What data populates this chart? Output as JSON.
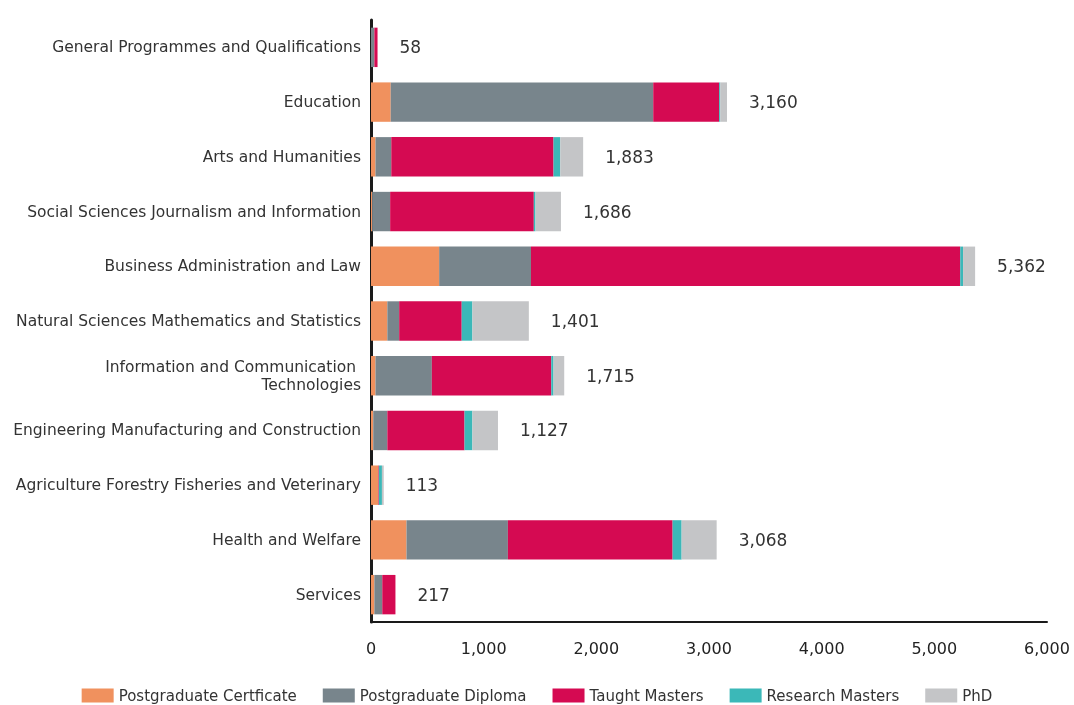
{
  "chart_data": {
    "type": "bar",
    "orientation": "horizontal",
    "stacked": true,
    "categories": [
      "General Programmes and Qualifications",
      "Education",
      "Arts and Humanities",
      "Social Sciences Journalism and Information",
      "Business Administration and Law",
      "Natural Sciences Mathematics and Statistics",
      "Information and Communication Technologies",
      "Engineering Manufacturing and Construction",
      "Agriculture Forestry Fisheries and Veterinary",
      "Health and Welfare",
      "Services"
    ],
    "series": [
      {
        "name": "Postgraduate Certficate",
        "color": "#f0915e",
        "values": [
          0,
          175,
          40,
          10,
          605,
          145,
          40,
          20,
          65,
          315,
          30
        ]
      },
      {
        "name": "Postgraduate Diploma",
        "color": "#78858c",
        "values": [
          30,
          2330,
          140,
          160,
          815,
          105,
          500,
          125,
          0,
          900,
          70
        ]
      },
      {
        "name": "Taught Masters",
        "color": "#d50a52",
        "values": [
          28,
          585,
          1440,
          1275,
          3810,
          555,
          1060,
          685,
          5,
          1462,
          117
        ]
      },
      {
        "name": "Research Masters",
        "color": "#3bb8b8",
        "values": [
          0,
          10,
          60,
          15,
          25,
          95,
          20,
          70,
          27,
          80,
          0
        ]
      },
      {
        "name": "PhD",
        "color": "#c4c5c7",
        "values": [
          0,
          60,
          203,
          226,
          107,
          501,
          95,
          227,
          16,
          311,
          0
        ]
      }
    ],
    "totals": [
      "58",
      "3,160",
      "1,883",
      "1,686",
      "5,362",
      "1,401",
      "1,715",
      "1,127",
      "113",
      "3,068",
      "217"
    ],
    "xlim": [
      0,
      6000
    ],
    "xticks": [
      {
        "value": 0,
        "label": "0"
      },
      {
        "value": 1000,
        "label": "1,000"
      },
      {
        "value": 2000,
        "label": "2,000"
      },
      {
        "value": 3000,
        "label": "3,000"
      },
      {
        "value": 4000,
        "label": "4,000"
      },
      {
        "value": 5000,
        "label": "5,000"
      },
      {
        "value": 6000,
        "label": "6,000"
      }
    ],
    "grid": false,
    "legend": "bottom"
  }
}
